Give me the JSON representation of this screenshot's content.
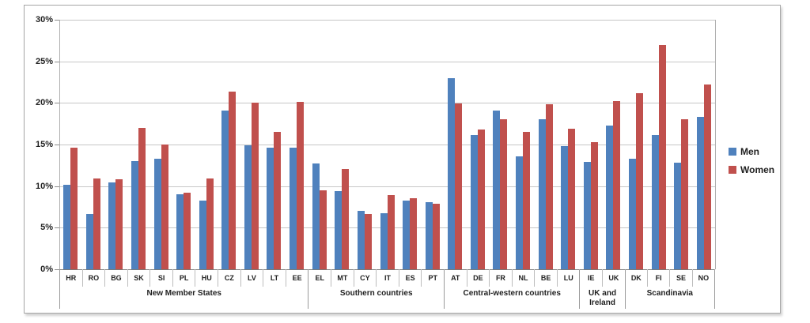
{
  "chart_data": {
    "type": "bar",
    "title": "",
    "xlabel": "",
    "ylabel": "",
    "ylim": [
      0,
      30
    ],
    "grid": true,
    "legend_position": "right",
    "y_ticks": [
      "0%",
      "5%",
      "10%",
      "15%",
      "20%",
      "25%",
      "30%"
    ],
    "legend": [
      {
        "name": "Men",
        "color": "#4F81BD"
      },
      {
        "name": "Women",
        "color": "#C0504D"
      }
    ],
    "series_names": [
      "Men",
      "Women"
    ],
    "groups": [
      {
        "label": "New Member States",
        "items": [
          {
            "code": "HR",
            "men": 10.2,
            "women": 14.6
          },
          {
            "code": "RO",
            "men": 6.6,
            "women": 10.9
          },
          {
            "code": "BG",
            "men": 10.4,
            "women": 10.8
          },
          {
            "code": "SK",
            "men": 13.0,
            "women": 17.0
          },
          {
            "code": "SI",
            "men": 13.3,
            "women": 15.0
          },
          {
            "code": "PL",
            "men": 9.0,
            "women": 9.2
          },
          {
            "code": "HU",
            "men": 8.3,
            "women": 10.9
          },
          {
            "code": "CZ",
            "men": 19.1,
            "women": 21.4
          },
          {
            "code": "LV",
            "men": 14.9,
            "women": 20.0
          },
          {
            "code": "LT",
            "men": 14.6,
            "women": 16.5
          },
          {
            "code": "EE",
            "men": 14.6,
            "women": 20.1
          }
        ]
      },
      {
        "label": "Southern countries",
        "items": [
          {
            "code": "EL",
            "men": 12.7,
            "women": 9.5
          },
          {
            "code": "MT",
            "men": 9.4,
            "women": 12.1
          },
          {
            "code": "CY",
            "men": 7.0,
            "women": 6.6
          },
          {
            "code": "IT",
            "men": 6.7,
            "women": 8.9
          },
          {
            "code": "ES",
            "men": 8.3,
            "women": 8.5
          },
          {
            "code": "PT",
            "men": 8.1,
            "women": 7.9
          }
        ]
      },
      {
        "label": "Central-western countries",
        "items": [
          {
            "code": "AT",
            "men": 23.0,
            "women": 19.9
          },
          {
            "code": "DE",
            "men": 16.1,
            "women": 16.8
          },
          {
            "code": "FR",
            "men": 19.1,
            "women": 18.0
          },
          {
            "code": "NL",
            "men": 13.6,
            "women": 16.5
          },
          {
            "code": "BE",
            "men": 18.0,
            "women": 19.8
          },
          {
            "code": "LU",
            "men": 14.8,
            "women": 16.9
          }
        ]
      },
      {
        "label": "UK and Ireland",
        "items": [
          {
            "code": "IE",
            "men": 12.9,
            "women": 15.3
          },
          {
            "code": "UK",
            "men": 17.3,
            "women": 20.2
          }
        ]
      },
      {
        "label": "Scandinavia",
        "items": [
          {
            "code": "DK",
            "men": 13.3,
            "women": 21.2
          },
          {
            "code": "FI",
            "men": 16.1,
            "women": 27.0
          },
          {
            "code": "SE",
            "men": 12.8,
            "women": 18.0
          },
          {
            "code": "NO",
            "men": 18.3,
            "women": 22.2
          }
        ]
      }
    ]
  }
}
